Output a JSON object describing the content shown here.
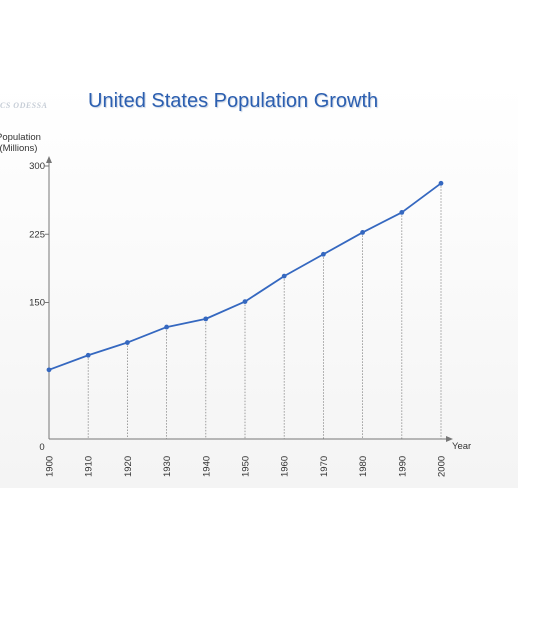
{
  "watermark": "CS ODESSA",
  "colors": {
    "line": "#3568c0",
    "title": "#2c5fb0",
    "axis": "#777777",
    "guide": "#888888"
  },
  "chart_data": {
    "type": "line",
    "title": "United States Population Growth",
    "ylabel_line1": "Population",
    "ylabel_line2": "(Millions)",
    "xlabel": "Year",
    "origin_label": "0",
    "x": [
      1900,
      1910,
      1920,
      1930,
      1940,
      1950,
      1960,
      1970,
      1980,
      1990,
      2000
    ],
    "series": [
      {
        "values": [
          76,
          92,
          106,
          123,
          132,
          151,
          179,
          203,
          227,
          249,
          281
        ]
      }
    ],
    "y_ticks": [
      150,
      225,
      300
    ],
    "ylim": [
      0,
      300
    ],
    "xlim": [
      1900,
      2000
    ],
    "grid": "vertical dotted drop lines at each data point",
    "legend": "none"
  }
}
